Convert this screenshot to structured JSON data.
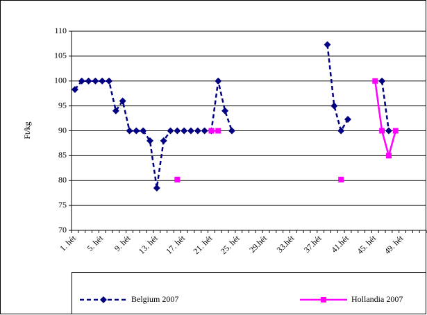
{
  "chart_data": {
    "type": "line",
    "y_label": "Ft/kg",
    "categories": [
      "1. hét",
      null,
      null,
      null,
      "5. hét",
      null,
      null,
      null,
      "9. hét",
      null,
      null,
      null,
      "13. hét",
      null,
      null,
      null,
      "17. hét",
      null,
      null,
      null,
      "21. hét",
      null,
      null,
      null,
      "25. hét",
      null,
      null,
      null,
      "29.hét",
      null,
      null,
      null,
      "33.hét",
      null,
      null,
      null,
      "37.hét",
      null,
      null,
      null,
      "41.hét",
      null,
      null,
      null,
      "45. hét",
      null,
      null,
      null,
      "49. hét",
      null,
      null,
      null
    ],
    "series": [
      {
        "name": "Belgium 2007",
        "color": "#000080",
        "marker": "diamond",
        "dashed": true,
        "values": [
          98.3,
          100,
          100,
          100,
          100,
          100,
          94,
          96,
          90,
          90,
          90,
          88,
          78.5,
          88,
          90,
          90,
          90,
          90,
          90,
          90,
          90,
          100,
          94,
          90,
          null,
          null,
          null,
          null,
          null,
          null,
          null,
          null,
          null,
          null,
          null,
          null,
          null,
          107.3,
          95,
          90,
          92.3,
          null,
          null,
          null,
          null,
          100,
          90,
          null,
          null,
          null,
          null,
          null
        ]
      },
      {
        "name": "Hollandia 2007",
        "color": "#ff00ff",
        "marker": "square",
        "dashed": false,
        "values": [
          null,
          null,
          null,
          null,
          null,
          null,
          null,
          null,
          null,
          null,
          null,
          null,
          null,
          null,
          null,
          80.2,
          null,
          null,
          null,
          null,
          90,
          90,
          null,
          null,
          null,
          null,
          null,
          null,
          null,
          null,
          null,
          null,
          null,
          null,
          null,
          null,
          null,
          null,
          null,
          80.2,
          null,
          null,
          null,
          null,
          100,
          90,
          85,
          90,
          null,
          null,
          null,
          null
        ]
      }
    ],
    "ylim": [
      70,
      110
    ],
    "yticks": [
      70,
      75,
      80,
      85,
      90,
      95,
      100,
      105,
      110
    ],
    "grid": true,
    "legend": "bottom"
  }
}
